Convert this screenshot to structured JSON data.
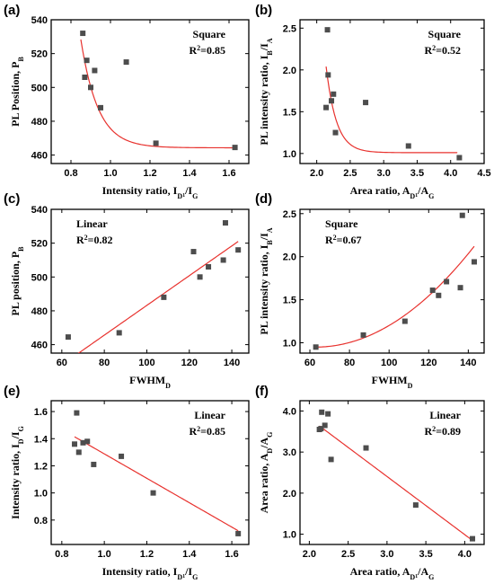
{
  "chart_data": [
    {
      "id": "a",
      "panel_label": "(a)",
      "type": "scatter",
      "fit": "square",
      "fit_label": "Square",
      "r2_value": "=0.85",
      "label_position": "top-right",
      "xlabel": {
        "main": "Intensity ratio, I",
        "sub": "D",
        "sub2": "1",
        "after": "/I",
        "tail": "G"
      },
      "ylabel": {
        "main": "PL Position, P",
        "sub": "B"
      },
      "xlim": [
        0.7,
        1.7
      ],
      "ylim": [
        455,
        540
      ],
      "xticks": [
        0.8,
        1.0,
        1.2,
        1.4,
        1.6
      ],
      "xtick_labels": [
        "0.8",
        "1.0",
        "1.2",
        "1.4",
        "1.6"
      ],
      "yticks": [
        460,
        480,
        500,
        520,
        540
      ],
      "ytick_labels": [
        "460",
        "480",
        "500",
        "520",
        "540"
      ],
      "points": [
        [
          0.86,
          532
        ],
        [
          0.87,
          506
        ],
        [
          0.88,
          516
        ],
        [
          0.9,
          500
        ],
        [
          0.92,
          510
        ],
        [
          0.95,
          488
        ],
        [
          1.08,
          515
        ],
        [
          1.23,
          467
        ],
        [
          1.63,
          464.5
        ]
      ],
      "curve": "exp",
      "curve_params": {
        "a": 464.3,
        "b": 64,
        "c": 11.5,
        "x0": 0.85
      },
      "curve_range": [
        0.85,
        1.64
      ]
    },
    {
      "id": "b",
      "panel_label": "(b)",
      "type": "scatter",
      "fit": "square",
      "fit_label": "Square",
      "r2_value": "=0.52",
      "label_position": "top-right",
      "xlabel": {
        "main": "Area ratio, A",
        "sub": "D",
        "sub2": "1",
        "after": "/A",
        "tail": "G"
      },
      "ylabel": {
        "main": "PL intensity ratio, I",
        "sub": "B",
        "after": "/I",
        "tail": "A"
      },
      "xlim": [
        1.75,
        4.5
      ],
      "ylim": [
        0.88,
        2.6
      ],
      "xticks": [
        2.0,
        2.5,
        3.0,
        3.5,
        4.0,
        4.5
      ],
      "xtick_labels": [
        "2.0",
        "2.5",
        "3.0",
        "3.5",
        "4.0",
        "4.5"
      ],
      "yticks": [
        1.0,
        1.5,
        2.0,
        2.5
      ],
      "ytick_labels": [
        "1.0",
        "1.5",
        "2.0",
        "2.5"
      ],
      "points": [
        [
          2.14,
          1.55
        ],
        [
          2.16,
          2.48
        ],
        [
          2.17,
          1.94
        ],
        [
          2.22,
          1.63
        ],
        [
          2.25,
          1.71
        ],
        [
          2.28,
          1.25
        ],
        [
          2.73,
          1.61
        ],
        [
          3.37,
          1.09
        ],
        [
          4.13,
          0.95
        ]
      ],
      "curve": "exp",
      "curve_params": {
        "a": 1.01,
        "b": 1.03,
        "c": 6.5,
        "x0": 2.14
      },
      "curve_range": [
        2.14,
        4.1
      ]
    },
    {
      "id": "c",
      "panel_label": "(c)",
      "type": "scatter",
      "fit": "linear",
      "fit_label": "Linear",
      "r2_value": "=0.82",
      "label_position": "top-left",
      "xlabel": {
        "main": "FWHM",
        "sub": "D"
      },
      "ylabel": {
        "main": "PL position, P",
        "sub": "B"
      },
      "xlim": [
        55,
        148
      ],
      "ylim": [
        455,
        540
      ],
      "xticks": [
        60,
        80,
        100,
        120,
        140
      ],
      "xtick_labels": [
        "60",
        "80",
        "100",
        "120",
        "140"
      ],
      "yticks": [
        460,
        480,
        500,
        520,
        540
      ],
      "ytick_labels": [
        "460",
        "480",
        "500",
        "520",
        "540"
      ],
      "points": [
        [
          63,
          464.5
        ],
        [
          87,
          467
        ],
        [
          108,
          488
        ],
        [
          122,
          515
        ],
        [
          125,
          500
        ],
        [
          129,
          506
        ],
        [
          136,
          510
        ],
        [
          137,
          532
        ],
        [
          143,
          516
        ]
      ],
      "curve": "poly",
      "curve_params": {
        "coef": [
          395.3,
          0.879
        ]
      },
      "curve_range": [
        63,
        143
      ]
    },
    {
      "id": "d",
      "panel_label": "(d)",
      "type": "scatter",
      "fit": "square",
      "fit_label": "Square",
      "r2_value": "=0.67",
      "label_position": "top-left",
      "xlabel": {
        "main": "FWHM",
        "sub": "D"
      },
      "ylabel": {
        "main": "PL intensity ratio, I",
        "sub": "B",
        "after": "/I",
        "tail": "A"
      },
      "xlim": [
        55,
        148
      ],
      "ylim": [
        0.88,
        2.55
      ],
      "xticks": [
        60,
        80,
        100,
        120,
        140
      ],
      "xtick_labels": [
        "60",
        "80",
        "100",
        "120",
        "140"
      ],
      "yticks": [
        1.0,
        1.5,
        2.0,
        2.5
      ],
      "ytick_labels": [
        "1.0",
        "1.5",
        "2.0",
        "2.5"
      ],
      "points": [
        [
          63,
          0.95
        ],
        [
          87,
          1.09
        ],
        [
          108,
          1.25
        ],
        [
          122,
          1.61
        ],
        [
          125,
          1.55
        ],
        [
          129,
          1.71
        ],
        [
          136,
          1.64
        ],
        [
          137,
          2.48
        ],
        [
          143,
          1.94
        ]
      ],
      "curve": "quad",
      "curve_params": {
        "a": 0.000183,
        "b": 63,
        "c": 0.95
      },
      "curve_range": [
        63,
        143
      ]
    },
    {
      "id": "e",
      "panel_label": "(e)",
      "type": "scatter",
      "fit": "linear",
      "fit_label": "Linear",
      "r2_value": "=0.85",
      "label_position": "top-right",
      "xlabel": {
        "main": "Intensity ratio, I",
        "sub": "D",
        "sub2": "1",
        "after": "/I",
        "tail": "G"
      },
      "ylabel": {
        "main": "Intensity ratio, I",
        "sub": "D",
        "after": "/I",
        "tail": "G"
      },
      "xlim": [
        0.75,
        1.68
      ],
      "ylim": [
        0.62,
        1.68
      ],
      "xticks": [
        0.8,
        1.0,
        1.2,
        1.4,
        1.6
      ],
      "xtick_labels": [
        "0.8",
        "1.0",
        "1.2",
        "1.4",
        "1.6"
      ],
      "yticks": [
        0.8,
        1.0,
        1.2,
        1.4,
        1.6
      ],
      "ytick_labels": [
        "0.8",
        "1.0",
        "1.2",
        "1.4",
        "1.6"
      ],
      "points": [
        [
          0.86,
          1.36
        ],
        [
          0.87,
          1.59
        ],
        [
          0.88,
          1.3
        ],
        [
          0.9,
          1.37
        ],
        [
          0.92,
          1.38
        ],
        [
          0.95,
          1.21
        ],
        [
          1.08,
          1.27
        ],
        [
          1.23,
          1.0
        ],
        [
          1.63,
          0.7
        ]
      ],
      "curve": "poly",
      "curve_params": {
        "coef": [
          2.188,
          -0.9
        ]
      },
      "curve_range": [
        0.86,
        1.63
      ]
    },
    {
      "id": "f",
      "panel_label": "(f)",
      "type": "scatter",
      "fit": "linear",
      "fit_label": "Linear",
      "r2_value": "=0.89",
      "label_position": "top-right",
      "xlabel": {
        "main": "Area ratio, A",
        "sub": "D",
        "sub2": "1",
        "after": "/A",
        "tail": "G"
      },
      "ylabel": {
        "main": "Area ratio, A",
        "sub": "D",
        "after": "/A",
        "tail": "G"
      },
      "xlim": [
        1.88,
        4.25
      ],
      "ylim": [
        0.75,
        4.25
      ],
      "xticks": [
        2.0,
        2.5,
        3.0,
        3.5,
        4.0
      ],
      "xtick_labels": [
        "2.0",
        "2.5",
        "3.0",
        "3.5",
        "4.0"
      ],
      "yticks": [
        1.0,
        2.0,
        3.0,
        4.0
      ],
      "ytick_labels": [
        "1.0",
        "2.0",
        "3.0",
        "4.0"
      ],
      "points": [
        [
          2.13,
          3.55
        ],
        [
          2.15,
          3.57
        ],
        [
          2.16,
          3.97
        ],
        [
          2.2,
          3.65
        ],
        [
          2.24,
          3.93
        ],
        [
          2.28,
          2.82
        ],
        [
          2.73,
          3.1
        ],
        [
          3.37,
          1.71
        ],
        [
          4.1,
          0.89
        ]
      ],
      "curve": "poly",
      "curve_params": {
        "coef": [
          6.65,
          -1.415
        ]
      },
      "curve_range": [
        2.13,
        4.1
      ]
    }
  ],
  "colors": {
    "marker": "#4d4d4d",
    "fit_line": "#e8322e",
    "axis": "#000000"
  }
}
